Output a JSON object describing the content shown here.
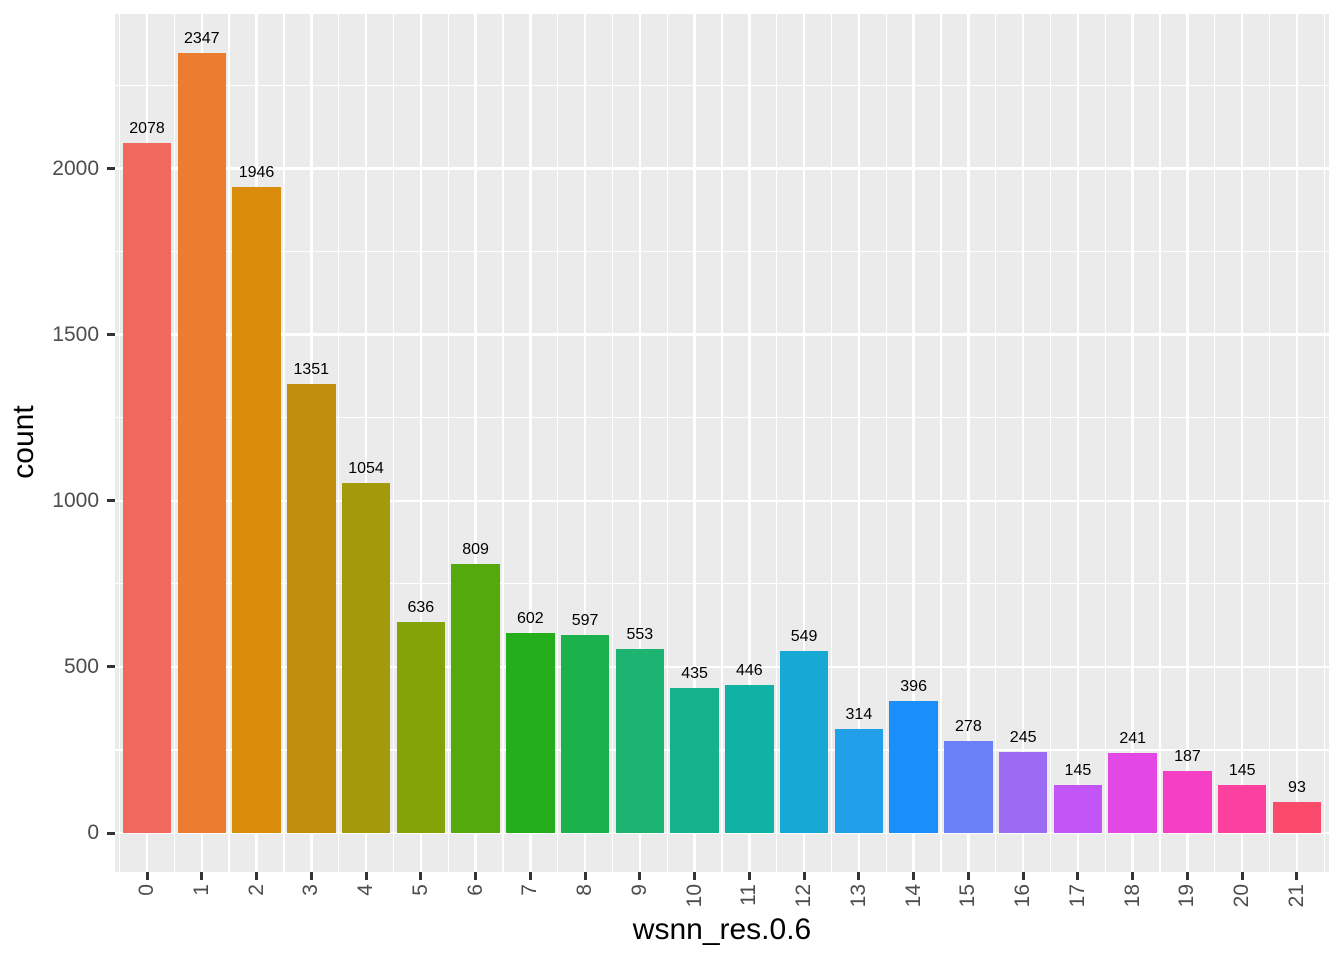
{
  "chart_data": {
    "type": "bar",
    "title": "",
    "xlabel": "wsnn_res.0.6",
    "ylabel": "count",
    "categories": [
      "0",
      "1",
      "2",
      "3",
      "4",
      "5",
      "6",
      "7",
      "8",
      "9",
      "10",
      "11",
      "12",
      "13",
      "14",
      "15",
      "16",
      "17",
      "18",
      "19",
      "20",
      "21"
    ],
    "values": [
      2078,
      2347,
      1946,
      1351,
      1054,
      636,
      809,
      602,
      597,
      553,
      435,
      446,
      549,
      314,
      396,
      278,
      245,
      145,
      241,
      187,
      145,
      93
    ],
    "value_labels_shown": true,
    "bar_colors": [
      "#F1685E",
      "#EA7D2F",
      "#D98D0B",
      "#C18F0B",
      "#A39A0B",
      "#83A308",
      "#54A90D",
      "#24AE1C",
      "#1BB24E",
      "#1DB371",
      "#15B28D",
      "#10B2A5",
      "#16A9D3",
      "#219FE9",
      "#1B8FF9",
      "#6A80F6",
      "#9B6BF4",
      "#C355F6",
      "#E348E5",
      "#F540C6",
      "#FA41A0",
      "#FB4B6C"
    ],
    "ytick_labels": [
      "0",
      "500",
      "1000",
      "1500",
      "2000"
    ],
    "ytick_values": [
      0,
      500,
      1000,
      1500,
      2000
    ],
    "ytick_minor_values": [
      250,
      750,
      1250,
      1750,
      2250
    ],
    "ylim": [
      -117,
      2485
    ],
    "x_tick_angle_deg": 90,
    "grid": "major-and-minor",
    "legend": "none",
    "panel_bg": "#EBEBEB",
    "grid_color": "#FFFFFF",
    "axis_text_color": "#4D4D4D",
    "tick_mark_color": "#333333",
    "label_text_color": "#000000"
  }
}
